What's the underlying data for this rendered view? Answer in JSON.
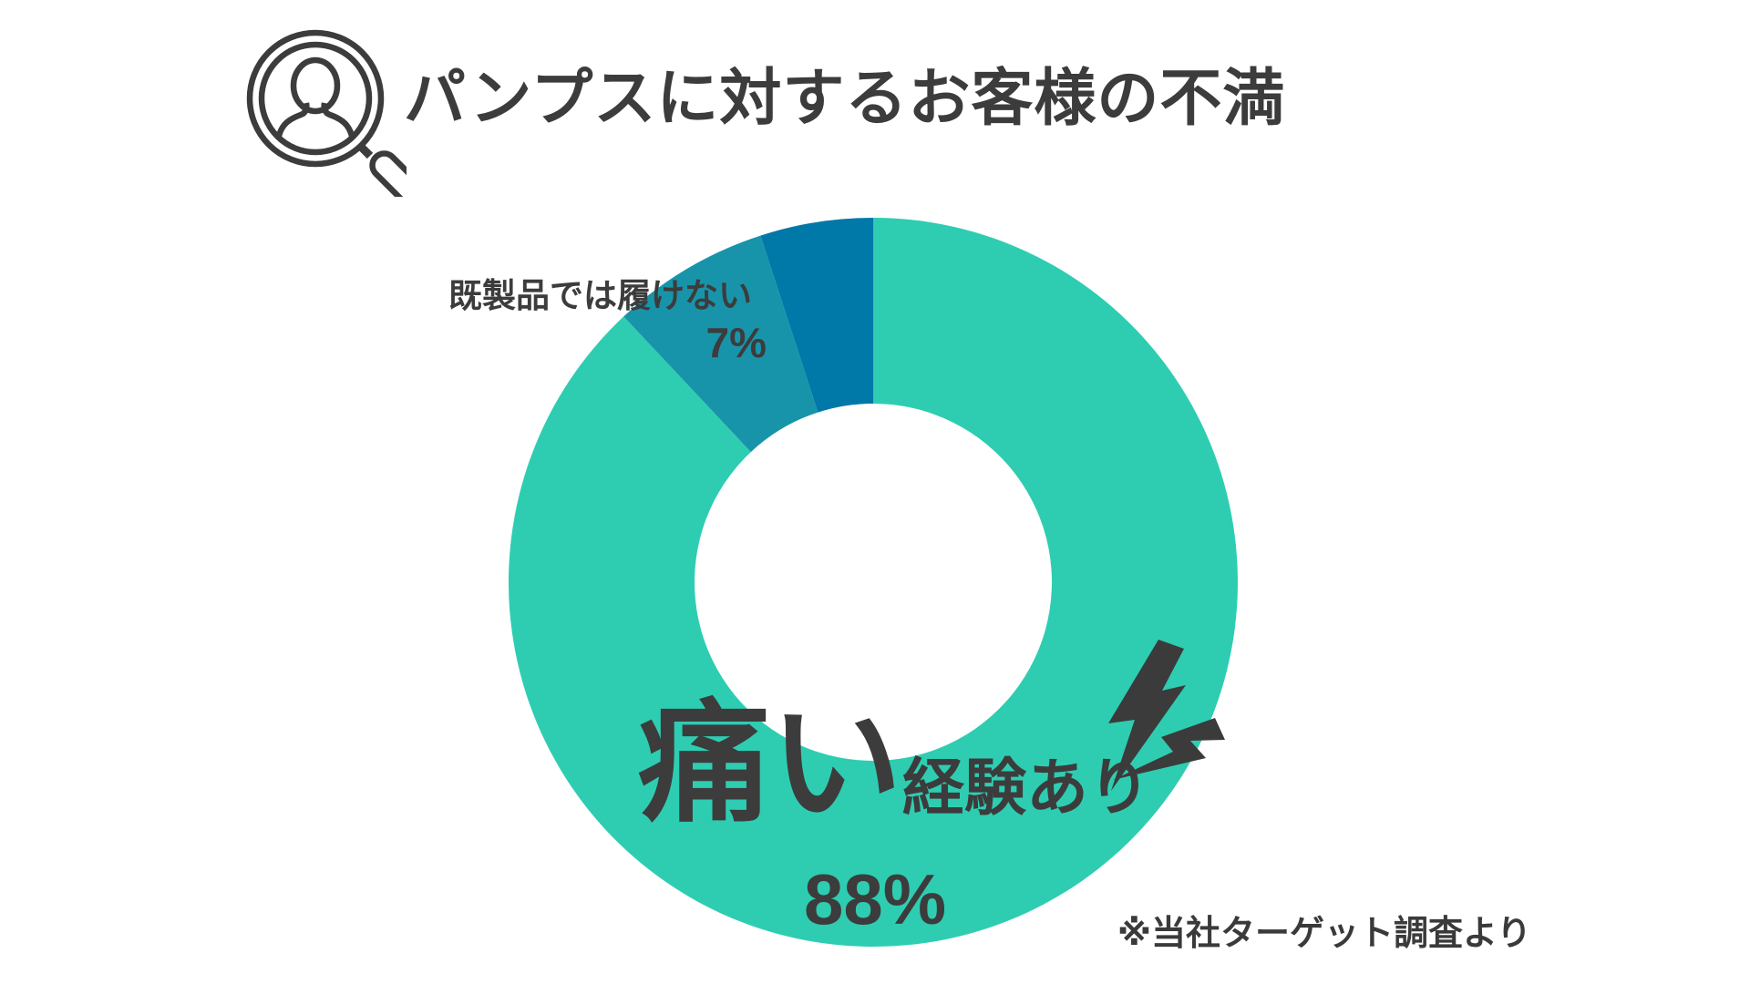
{
  "header": {
    "title": "パンプスに対するお客様の不満"
  },
  "chart_data": {
    "type": "pie",
    "variant": "donut",
    "title": "パンプスに対するお客様の不満",
    "units": "%",
    "direction": "clockwise",
    "start_angle_deg": 0,
    "inner_radius_ratio": 0.49,
    "legend_position": "none",
    "grid": false,
    "slices": [
      {
        "name": "pain",
        "label": "痛い経験あり",
        "value": 88,
        "color": "#2ecdb2"
      },
      {
        "name": "ready-made",
        "label": "既製品では履けない",
        "value": 7,
        "color": "#1894aa"
      },
      {
        "name": "other",
        "label": "",
        "value": 5,
        "color": "#0078a8"
      }
    ],
    "annotations": [
      "※当社ターゲット調査より"
    ]
  },
  "labels": {
    "fit": {
      "line1": "既製品では履けない",
      "value": "7%"
    },
    "pain": {
      "emphasis": "痛い",
      "rest": "経験あり",
      "value": "88%"
    }
  },
  "footnote": {
    "text": "※当社ターゲット調査より"
  },
  "icons": {
    "header": "person-in-magnifier-icon",
    "pain": "lightning-bolts-icon"
  },
  "colors": {
    "background": "#ffffff",
    "text": "#3c3c3c",
    "icon_stroke": "#3c3c3c",
    "pain_slice": "#2ecdb2",
    "ready_made_slice": "#1894aa",
    "other_slice": "#0078a8"
  }
}
